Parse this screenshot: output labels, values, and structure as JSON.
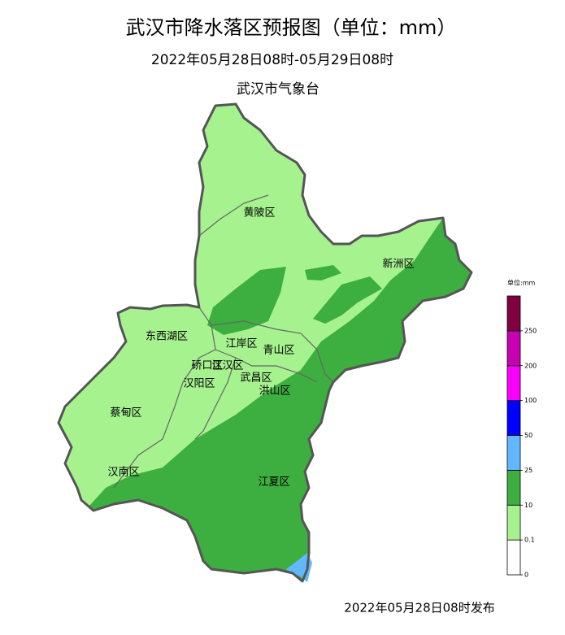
{
  "title": "武汉市降水落区预报图（单位：mm）",
  "period": "2022年05月28日08时-05月29日08时",
  "issuer": "武汉市气象台",
  "districts": [
    "黄陂区",
    "新洲区",
    "东西湖区",
    "江岸区",
    "青山区",
    "硚口区",
    "江汉区",
    "汉阳区",
    "武昌区",
    "洪山区",
    "蔡甸区",
    "汉南区",
    "江夏区"
  ],
  "legend": {
    "title": "单位:mm",
    "ticks": [
      0,
      0.1,
      10,
      25,
      50,
      100,
      200,
      250
    ],
    "colors": [
      "#ffffff",
      "#a6f28f",
      "#3dae40",
      "#61b8ff",
      "#0000fe",
      "#fa00fa",
      "#c800b4",
      "#800040"
    ]
  },
  "footer": "2022年05月28日08时发布"
}
